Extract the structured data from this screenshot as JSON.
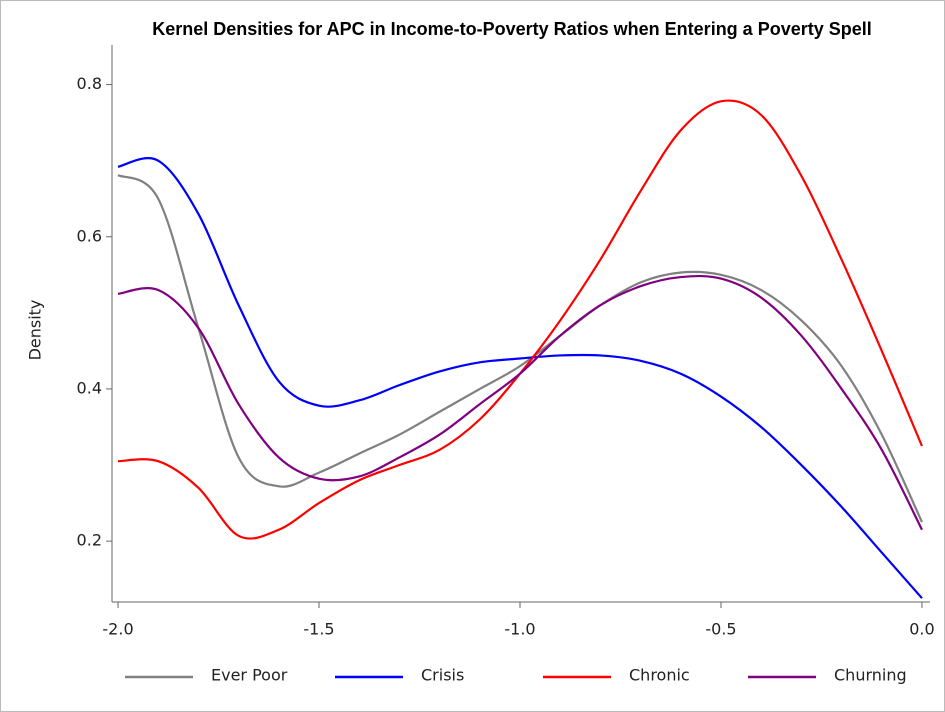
{
  "chart_data": {
    "type": "line",
    "title": "Kernel Densities for APC in Income-to-Poverty Ratios when Entering a Poverty Spell",
    "y_label": "Density",
    "x": [
      -2.0,
      -1.9,
      -1.8,
      -1.7,
      -1.6,
      -1.5,
      -1.4,
      -1.3,
      -1.2,
      -1.1,
      -1.0,
      -0.9,
      -0.8,
      -0.7,
      -0.6,
      -0.5,
      -0.4,
      -0.3,
      -0.2,
      -0.1,
      0.0
    ],
    "series": [
      {
        "name": "Ever Poor",
        "color": "#808080",
        "values": [
          0.681,
          0.65,
          0.48,
          0.31,
          0.272,
          0.29,
          0.315,
          0.34,
          0.37,
          0.4,
          0.43,
          0.47,
          0.51,
          0.54,
          0.553,
          0.55,
          0.53,
          0.49,
          0.43,
          0.34,
          0.225
        ]
      },
      {
        "name": "Crisis",
        "color": "#0000ff",
        "values": [
          0.692,
          0.7,
          0.63,
          0.51,
          0.41,
          0.378,
          0.385,
          0.405,
          0.423,
          0.435,
          0.44,
          0.444,
          0.444,
          0.437,
          0.42,
          0.39,
          0.35,
          0.3,
          0.245,
          0.185,
          0.125
        ]
      },
      {
        "name": "Chronic",
        "color": "#ff0000",
        "values": [
          0.305,
          0.305,
          0.27,
          0.207,
          0.215,
          0.25,
          0.28,
          0.3,
          0.32,
          0.36,
          0.42,
          0.49,
          0.57,
          0.66,
          0.74,
          0.778,
          0.76,
          0.68,
          0.57,
          0.45,
          0.325
        ]
      },
      {
        "name": "Churning",
        "color": "#800080",
        "values": [
          0.525,
          0.53,
          0.48,
          0.38,
          0.31,
          0.282,
          0.285,
          0.31,
          0.34,
          0.38,
          0.42,
          0.47,
          0.51,
          0.535,
          0.547,
          0.545,
          0.52,
          0.47,
          0.4,
          0.32,
          0.215
        ]
      }
    ],
    "xlim": [
      -2.015,
      0.02
    ],
    "ylim": [
      0.12,
      0.852
    ],
    "xticks": [
      {
        "value": -2.0,
        "label": "-2.0"
      },
      -1.5,
      {
        "value": -1.0,
        "label": "-1.0"
      },
      -0.5,
      {
        "value": 0.0,
        "label": "0.0"
      }
    ],
    "yticks": [
      0.2,
      0.4,
      0.6,
      0.8
    ],
    "legend": "bottom",
    "grid": false
  }
}
